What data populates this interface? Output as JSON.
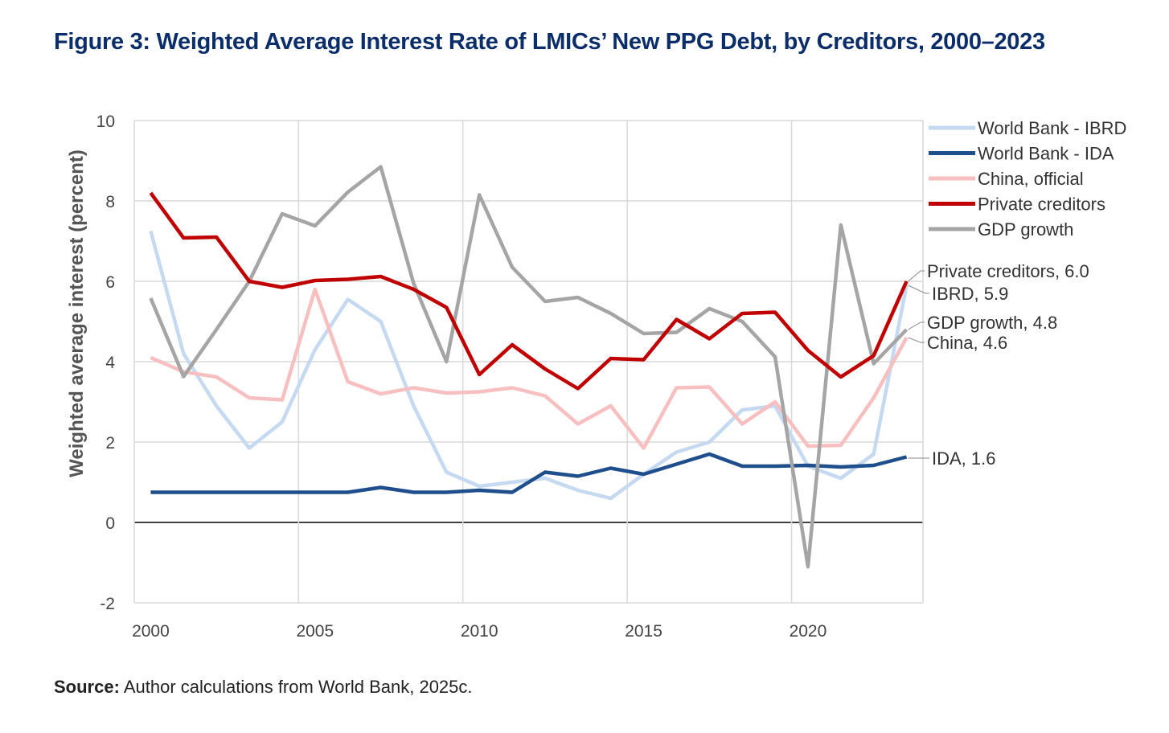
{
  "title": "Figure 3: Weighted Average Interest Rate of LMICs’ New PPG Debt, by Creditors, 2000–2023",
  "source_label": "Source:",
  "source_text": " Author calculations from World Bank, 2025c.",
  "chart_data": {
    "type": "line",
    "title": "Figure 3: Weighted Average Interest Rate of LMICs’ New PPG Debt, by Creditors, 2000–2023",
    "xlabel": "",
    "ylabel": "Weighted average interest (percent)",
    "ylim": [
      -2,
      10
    ],
    "yticks": [
      -2,
      0,
      2,
      4,
      6,
      8,
      10
    ],
    "xticks": [
      2000,
      2005,
      2010,
      2015,
      2020
    ],
    "grid": true,
    "legend_position": "top-right",
    "x": [
      2000,
      2001,
      2002,
      2003,
      2004,
      2005,
      2006,
      2007,
      2008,
      2009,
      2010,
      2011,
      2012,
      2013,
      2014,
      2015,
      2016,
      2017,
      2018,
      2019,
      2020,
      2021,
      2022,
      2023
    ],
    "series": [
      {
        "name": "World Bank - IBRD",
        "color": "#c5d9f1",
        "values": [
          7.25,
          4.2,
          2.9,
          1.85,
          2.5,
          4.3,
          5.55,
          5.0,
          2.9,
          1.25,
          0.9,
          1.0,
          1.1,
          0.8,
          0.6,
          1.2,
          1.75,
          2.0,
          2.8,
          2.9,
          1.4,
          1.1,
          1.7,
          5.9
        ]
      },
      {
        "name": "World Bank - IDA",
        "color": "#1f4e8c",
        "values": [
          0.75,
          0.75,
          0.75,
          0.75,
          0.75,
          0.75,
          0.75,
          0.87,
          0.75,
          0.75,
          0.8,
          0.75,
          1.25,
          1.15,
          1.35,
          1.2,
          1.45,
          1.7,
          1.4,
          1.4,
          1.42,
          1.38,
          1.42,
          1.63
        ]
      },
      {
        "name": "China, official",
        "color": "#f7bfc0",
        "values": [
          4.1,
          3.75,
          3.62,
          3.1,
          3.05,
          5.8,
          3.5,
          3.2,
          3.35,
          3.22,
          3.25,
          3.35,
          3.15,
          2.45,
          2.9,
          1.85,
          3.35,
          3.37,
          2.45,
          3.0,
          1.9,
          1.92,
          3.1,
          4.6
        ]
      },
      {
        "name": "Private creditors",
        "color": "#c00000",
        "values": [
          8.2,
          7.08,
          7.1,
          6.0,
          5.85,
          6.02,
          6.05,
          6.12,
          5.8,
          5.35,
          3.68,
          4.42,
          3.82,
          3.33,
          4.08,
          4.05,
          5.05,
          4.57,
          5.2,
          5.23,
          4.28,
          3.62,
          4.15,
          6.0
        ]
      },
      {
        "name": "GDP growth",
        "color": "#a5a5a5",
        "values": [
          5.58,
          3.63,
          4.8,
          6.0,
          7.68,
          7.38,
          8.22,
          8.85,
          5.95,
          4.0,
          8.15,
          6.35,
          5.5,
          5.6,
          5.2,
          4.7,
          4.73,
          5.32,
          5.0,
          4.12,
          -1.1,
          7.4,
          3.95,
          4.8
        ]
      }
    ],
    "annotations": [
      {
        "text": "Private creditors,  6.0",
        "value": 6.0
      },
      {
        "text": "IBRD,  5.9",
        "value": 5.9
      },
      {
        "text": "GDP growth,  4.8",
        "value": 4.8
      },
      {
        "text": "China,  4.6",
        "value": 4.6
      },
      {
        "text": "IDA,  1.6",
        "value": 1.6
      }
    ]
  }
}
